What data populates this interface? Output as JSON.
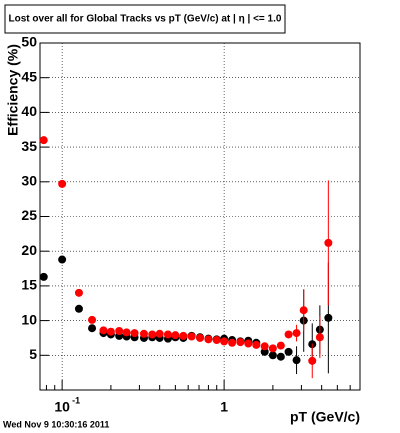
{
  "chart_data": {
    "type": "scatter",
    "title": "Lost over all for Global Tracks vs pT (GeV/c) at |  η | <= 1.0",
    "x_label": "pT (GeV/c)",
    "y_label": "Efficiency (%)",
    "timestamp": "Wed Nov  9 10:30:16 2011",
    "x": [
      0.077,
      0.1,
      0.127,
      0.153,
      0.18,
      0.2,
      0.225,
      0.25,
      0.28,
      0.32,
      0.36,
      0.4,
      0.45,
      0.5,
      0.56,
      0.63,
      0.71,
      0.8,
      0.9,
      1.0,
      1.12,
      1.26,
      1.41,
      1.58,
      1.78,
      2.0,
      2.24,
      2.5,
      2.8,
      3.1,
      3.5,
      3.9,
      4.4
    ],
    "series": [
      {
        "name": "black",
        "color": "#000000",
        "values": [
          16.3,
          18.8,
          11.7,
          8.9,
          8.2,
          8.0,
          7.8,
          7.7,
          7.6,
          7.5,
          7.6,
          7.5,
          7.4,
          7.6,
          7.5,
          7.8,
          7.6,
          7.4,
          7.3,
          7.4,
          7.2,
          7.0,
          7.1,
          6.8,
          5.5,
          5.0,
          4.8,
          5.5,
          4.3,
          10.0,
          6.6,
          8.7,
          10.4
        ],
        "errors": [
          null,
          null,
          null,
          null,
          null,
          null,
          null,
          null,
          null,
          null,
          null,
          null,
          null,
          null,
          null,
          null,
          null,
          null,
          null,
          null,
          null,
          null,
          null,
          null,
          null,
          null,
          null,
          null,
          2,
          4.5,
          3,
          3.5,
          8
        ]
      },
      {
        "name": "red",
        "color": "#ff0000",
        "values": [
          36,
          29.7,
          14,
          10.1,
          8.6,
          8.4,
          8.5,
          8.3,
          8.2,
          8.1,
          8.0,
          8.1,
          8.0,
          7.9,
          7.8,
          7.7,
          7.5,
          7.3,
          7.2,
          7.0,
          6.8,
          6.9,
          6.7,
          6.5,
          6.3,
          6.0,
          6.4,
          8.0,
          8.2,
          11.5,
          4.2,
          7.6,
          21.2
        ],
        "errors": [
          null,
          null,
          null,
          null,
          null,
          null,
          null,
          null,
          null,
          null,
          null,
          null,
          null,
          null,
          null,
          null,
          null,
          null,
          null,
          null,
          null,
          null,
          null,
          null,
          null,
          null,
          null,
          null,
          1.2,
          3,
          2.5,
          3,
          9
        ]
      }
    ],
    "xscale": "log",
    "xlim": [
      0.073,
      6.9
    ],
    "xticks": [
      {
        "value": 0.1,
        "label": "10",
        "exponent": "-1"
      },
      1
    ],
    "xminor": [
      0.08,
      0.09,
      0.2,
      0.3,
      0.4,
      0.5,
      0.6,
      0.7,
      0.8,
      0.9,
      2,
      3,
      4,
      5,
      6
    ],
    "ylim": [
      0,
      50
    ],
    "yticks": [
      5,
      10,
      15,
      20,
      25,
      30,
      35,
      40,
      45,
      50
    ],
    "grid": true
  }
}
